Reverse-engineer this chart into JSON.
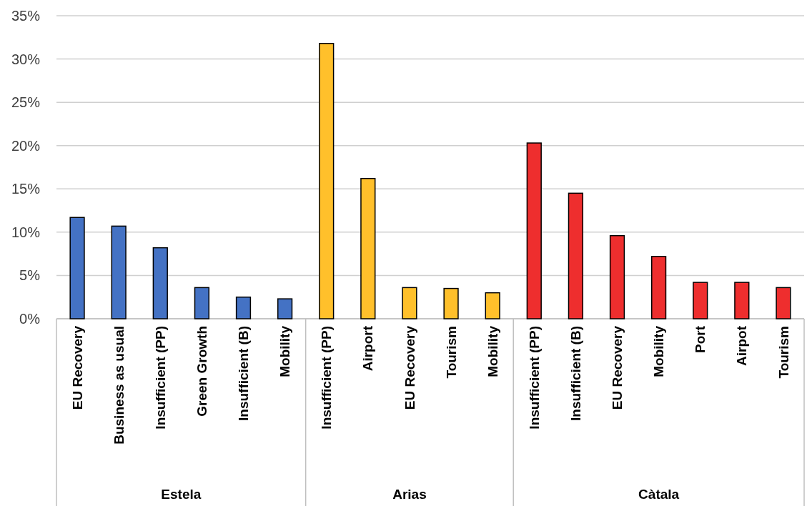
{
  "chart_data": {
    "type": "bar",
    "categories": [
      "EU Recovery",
      "Business as usual",
      "Insufficient (PP)",
      "Green Growth",
      "Insufficient (B)",
      "Mobility",
      "Insufficient (PP)",
      "Airport",
      "EU Recovery",
      "Tourism",
      "Mobility",
      "Insufficient (PP)",
      "Insufficient (B)",
      "EU Recovery",
      "Mobility",
      "Port",
      "Airpot",
      "Tourism"
    ],
    "series": [
      {
        "color": "#4472c4",
        "values": [
          11.7,
          10.7,
          8.2,
          3.6,
          2.5,
          2.3,
          null,
          null,
          null,
          null,
          null,
          null,
          null,
          null,
          null,
          null,
          null,
          null
        ]
      },
      {
        "color": "#ffc02b",
        "values": [
          null,
          null,
          null,
          null,
          null,
          null,
          31.8,
          16.2,
          3.6,
          3.5,
          3.0,
          null,
          null,
          null,
          null,
          null,
          null,
          null
        ]
      },
      {
        "color": "#ee2e2e",
        "values": [
          null,
          null,
          null,
          null,
          null,
          null,
          null,
          null,
          null,
          null,
          null,
          20.3,
          14.5,
          9.6,
          7.2,
          4.2,
          4.2,
          3.6
        ]
      }
    ],
    "ylim": [
      0,
      35
    ],
    "yticks": [
      {
        "value": 0,
        "label": "0%"
      },
      {
        "value": 5,
        "label": "5%"
      },
      {
        "value": 10,
        "label": "10%"
      },
      {
        "value": 15,
        "label": "15%"
      },
      {
        "value": 20,
        "label": "20%"
      },
      {
        "value": 25,
        "label": "25%"
      },
      {
        "value": 30,
        "label": "30%"
      },
      {
        "value": 35,
        "label": "35%"
      }
    ],
    "grid": "y",
    "annotations": [
      "Estela",
      "Arias",
      "Càtala"
    ]
  }
}
